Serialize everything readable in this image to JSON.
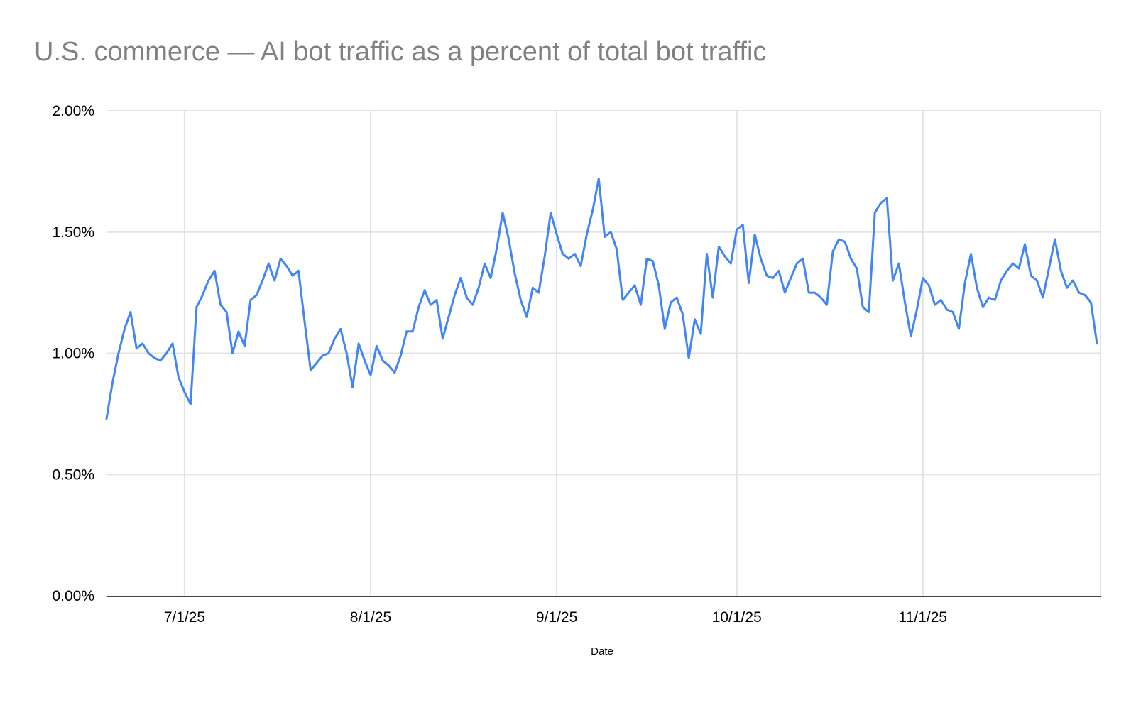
{
  "title": "U.S. commerce — AI bot traffic as a percent of total bot traffic",
  "colors": {
    "line": "#4285f4",
    "gridline": "#e3e3e3",
    "axis_line": "#424242",
    "title_text": "#808080",
    "tick_text": "#000000",
    "background": "#ffffff"
  },
  "chart_data": {
    "type": "line",
    "title": "U.S. commerce — AI bot traffic as a percent of total bot traffic",
    "xlabel": "Date",
    "ylabel": "",
    "ylim": [
      0,
      2
    ],
    "grid": true,
    "legend": "none",
    "y_ticks": [
      {
        "value": 0.0,
        "label": "0.00%"
      },
      {
        "value": 0.5,
        "label": "0.50%"
      },
      {
        "value": 1.0,
        "label": "1.00%"
      },
      {
        "value": 1.5,
        "label": "1.50%"
      },
      {
        "value": 2.0,
        "label": "2.00%"
      }
    ],
    "x_ticks": [
      {
        "label": "7/1/25",
        "day_offset": 13
      },
      {
        "label": "8/1/25",
        "day_offset": 44
      },
      {
        "label": "9/1/25",
        "day_offset": 75
      },
      {
        "label": "10/1/25",
        "day_offset": 105
      },
      {
        "label": "11/1/25",
        "day_offset": 136
      }
    ],
    "x_start_date": "6/18/25",
    "x_end_date": "11/30/25",
    "x_frequency": "daily",
    "series": [
      {
        "name": "AI bot traffic as a percent of total bot traffic",
        "color": "#4285f4",
        "values": [
          0.73,
          0.88,
          1.0,
          1.1,
          1.17,
          1.02,
          1.04,
          1.0,
          0.98,
          0.97,
          1.0,
          1.04,
          0.9,
          0.84,
          0.79,
          1.19,
          1.24,
          1.3,
          1.34,
          1.2,
          1.17,
          1.0,
          1.09,
          1.03,
          1.22,
          1.24,
          1.3,
          1.37,
          1.3,
          1.39,
          1.36,
          1.32,
          1.34,
          1.13,
          0.93,
          0.96,
          0.99,
          1.0,
          1.06,
          1.1,
          1.0,
          0.86,
          1.04,
          0.97,
          0.91,
          1.03,
          0.97,
          0.95,
          0.92,
          0.99,
          1.09,
          1.09,
          1.19,
          1.26,
          1.2,
          1.22,
          1.06,
          1.15,
          1.24,
          1.31,
          1.23,
          1.2,
          1.27,
          1.37,
          1.31,
          1.43,
          1.58,
          1.47,
          1.33,
          1.22,
          1.15,
          1.27,
          1.25,
          1.4,
          1.58,
          1.49,
          1.41,
          1.39,
          1.41,
          1.36,
          1.49,
          1.59,
          1.72,
          1.48,
          1.5,
          1.43,
          1.22,
          1.25,
          1.28,
          1.2,
          1.39,
          1.38,
          1.28,
          1.1,
          1.21,
          1.23,
          1.16,
          0.98,
          1.14,
          1.08,
          1.41,
          1.23,
          1.44,
          1.4,
          1.37,
          1.51,
          1.53,
          1.29,
          1.49,
          1.39,
          1.32,
          1.31,
          1.34,
          1.25,
          1.31,
          1.37,
          1.39,
          1.25,
          1.25,
          1.23,
          1.2,
          1.42,
          1.47,
          1.46,
          1.39,
          1.35,
          1.19,
          1.17,
          1.58,
          1.62,
          1.64,
          1.3,
          1.37,
          1.21,
          1.07,
          1.18,
          1.31,
          1.28,
          1.2,
          1.22,
          1.18,
          1.17,
          1.1,
          1.29,
          1.41,
          1.27,
          1.19,
          1.23,
          1.22,
          1.3,
          1.34,
          1.37,
          1.35,
          1.45,
          1.32,
          1.3,
          1.23,
          1.35,
          1.47,
          1.34,
          1.27,
          1.3,
          1.25,
          1.24,
          1.21,
          1.04
        ]
      }
    ]
  }
}
